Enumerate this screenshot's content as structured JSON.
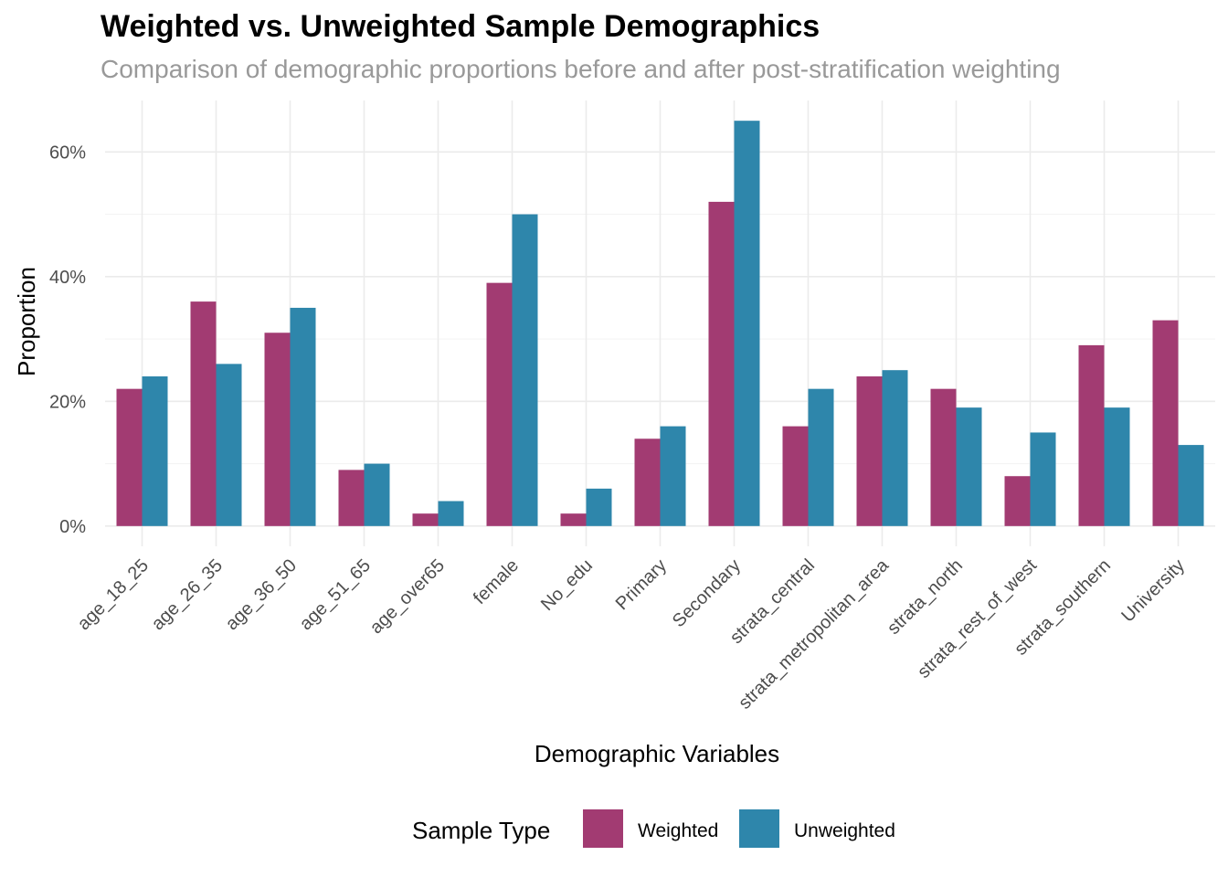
{
  "chart_data": {
    "type": "bar",
    "title": "Weighted vs. Unweighted Sample Demographics",
    "subtitle": "Comparison of demographic proportions before and after post-stratification weighting",
    "xlabel": "Demographic Variables",
    "ylabel": "Proportion",
    "categories": [
      "age_18_25",
      "age_26_35",
      "age_36_50",
      "age_51_65",
      "age_over65",
      "female",
      "No_edu",
      "Primary",
      "Secondary",
      "strata_central",
      "strata_metropolitan_area",
      "strata_north",
      "strata_rest_of_west",
      "strata_southern",
      "University"
    ],
    "series": [
      {
        "name": "Weighted",
        "color": "#A23B72",
        "values": [
          0.22,
          0.36,
          0.31,
          0.09,
          0.02,
          0.39,
          0.02,
          0.14,
          0.52,
          0.16,
          0.24,
          0.22,
          0.08,
          0.29,
          0.33
        ]
      },
      {
        "name": "Unweighted",
        "color": "#2E86AB",
        "values": [
          0.24,
          0.26,
          0.35,
          0.1,
          0.04,
          0.5,
          0.06,
          0.16,
          0.65,
          0.22,
          0.25,
          0.19,
          0.15,
          0.19,
          0.13
        ]
      }
    ],
    "yticks": [
      0,
      0.2,
      0.4,
      0.6
    ],
    "ytick_labels": [
      "0%",
      "20%",
      "40%",
      "60%"
    ],
    "ylim": [
      -0.0325,
      0.6825
    ],
    "grid": true,
    "legend": {
      "title": "Sample Type",
      "position": "bottom"
    }
  }
}
